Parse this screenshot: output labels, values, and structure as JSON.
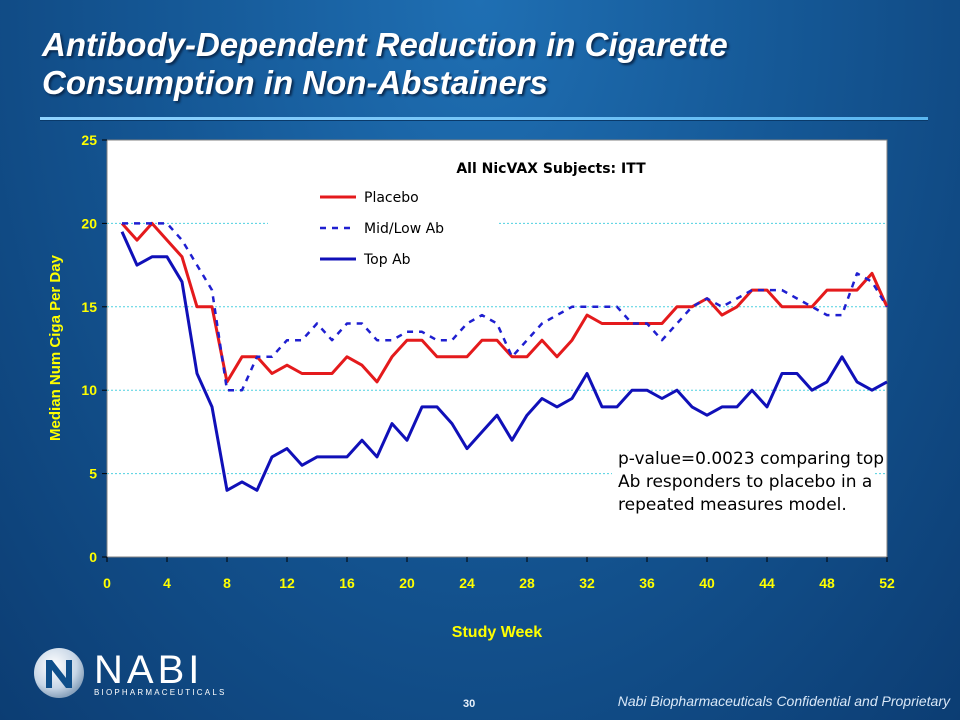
{
  "slide": {
    "title_line1": "Antibody-Dependent Reduction in Cigarette",
    "title_line2": "Consumption in Non-Abstainers",
    "page_number": "30",
    "footer": "Nabi Biopharmaceuticals Confidential and Proprietary",
    "logo_name": "NABI",
    "logo_tagline": "BIOPHARMACEUTICALS"
  },
  "colors": {
    "placebo": "#e41a1c",
    "mid_low_ab": "#1f1fd0",
    "top_ab": "#1010b8",
    "axis_text": "#ffff00",
    "plot_background": "#ffffff",
    "gridline": "#4fd0e0"
  },
  "chart_data": {
    "type": "line",
    "title": "All NicVAX Subjects: ITT",
    "xlabel": "Study Week",
    "ylabel": "Median Num Ciga Per Day",
    "xlim": [
      0,
      52
    ],
    "ylim": [
      0,
      25
    ],
    "x_ticks": [
      0,
      4,
      8,
      12,
      16,
      20,
      24,
      28,
      32,
      36,
      40,
      44,
      48,
      52
    ],
    "y_ticks": [
      0,
      5,
      10,
      15,
      20,
      25
    ],
    "grid": "horizontal dashed",
    "legend_position": "top-center",
    "annotation": [
      "p-value=0.0023 comparing top",
      "Ab responders to placebo in a",
      "repeated measures model."
    ],
    "x": [
      1,
      2,
      3,
      4,
      5,
      6,
      7,
      8,
      9,
      10,
      11,
      12,
      13,
      14,
      15,
      16,
      17,
      18,
      19,
      20,
      21,
      22,
      23,
      24,
      25,
      26,
      27,
      28,
      29,
      30,
      31,
      32,
      33,
      34,
      35,
      36,
      37,
      38,
      39,
      40,
      41,
      42,
      43,
      44,
      45,
      46,
      47,
      48,
      49,
      50,
      51,
      52
    ],
    "series": [
      {
        "name": "Placebo",
        "style": "solid",
        "values": [
          20,
          19,
          20,
          19,
          18,
          15,
          15,
          10.5,
          12,
          12,
          11,
          11.5,
          11,
          11,
          11,
          12,
          11.5,
          10.5,
          12,
          13,
          13,
          12,
          12,
          12,
          13,
          13,
          12,
          12,
          13,
          12,
          13,
          14.5,
          14,
          14,
          14,
          14,
          14,
          15,
          15,
          15.5,
          14.5,
          15,
          16,
          16,
          15,
          15,
          15,
          16,
          16,
          16,
          17,
          15
        ]
      },
      {
        "name": "Mid/Low Ab",
        "style": "dashed",
        "values": [
          20,
          20,
          20,
          20,
          19,
          17.5,
          16,
          10,
          10,
          12,
          12,
          13,
          13,
          14,
          13,
          14,
          14,
          13,
          13,
          13.5,
          13.5,
          13,
          13,
          14,
          14.5,
          14,
          12,
          13,
          14,
          14.5,
          15,
          15,
          15,
          15,
          14,
          14,
          13,
          14,
          15,
          15.5,
          15,
          15.5,
          16,
          16,
          16,
          15.5,
          15,
          14.5,
          14.5,
          17,
          16.5,
          15
        ]
      },
      {
        "name": "Top Ab",
        "style": "solid",
        "values": [
          19.5,
          17.5,
          18,
          18,
          16.5,
          11,
          9,
          4,
          4.5,
          4,
          6,
          6.5,
          5.5,
          6,
          6,
          6,
          7,
          6,
          8,
          7,
          9,
          9,
          8,
          6.5,
          7.5,
          8.5,
          7,
          8.5,
          9.5,
          9,
          9.5,
          11,
          9,
          9,
          10,
          10,
          9.5,
          10,
          9,
          8.5,
          9,
          9,
          10,
          9,
          11,
          11,
          10,
          10.5,
          12,
          10.5,
          10,
          10.5
        ]
      }
    ]
  }
}
